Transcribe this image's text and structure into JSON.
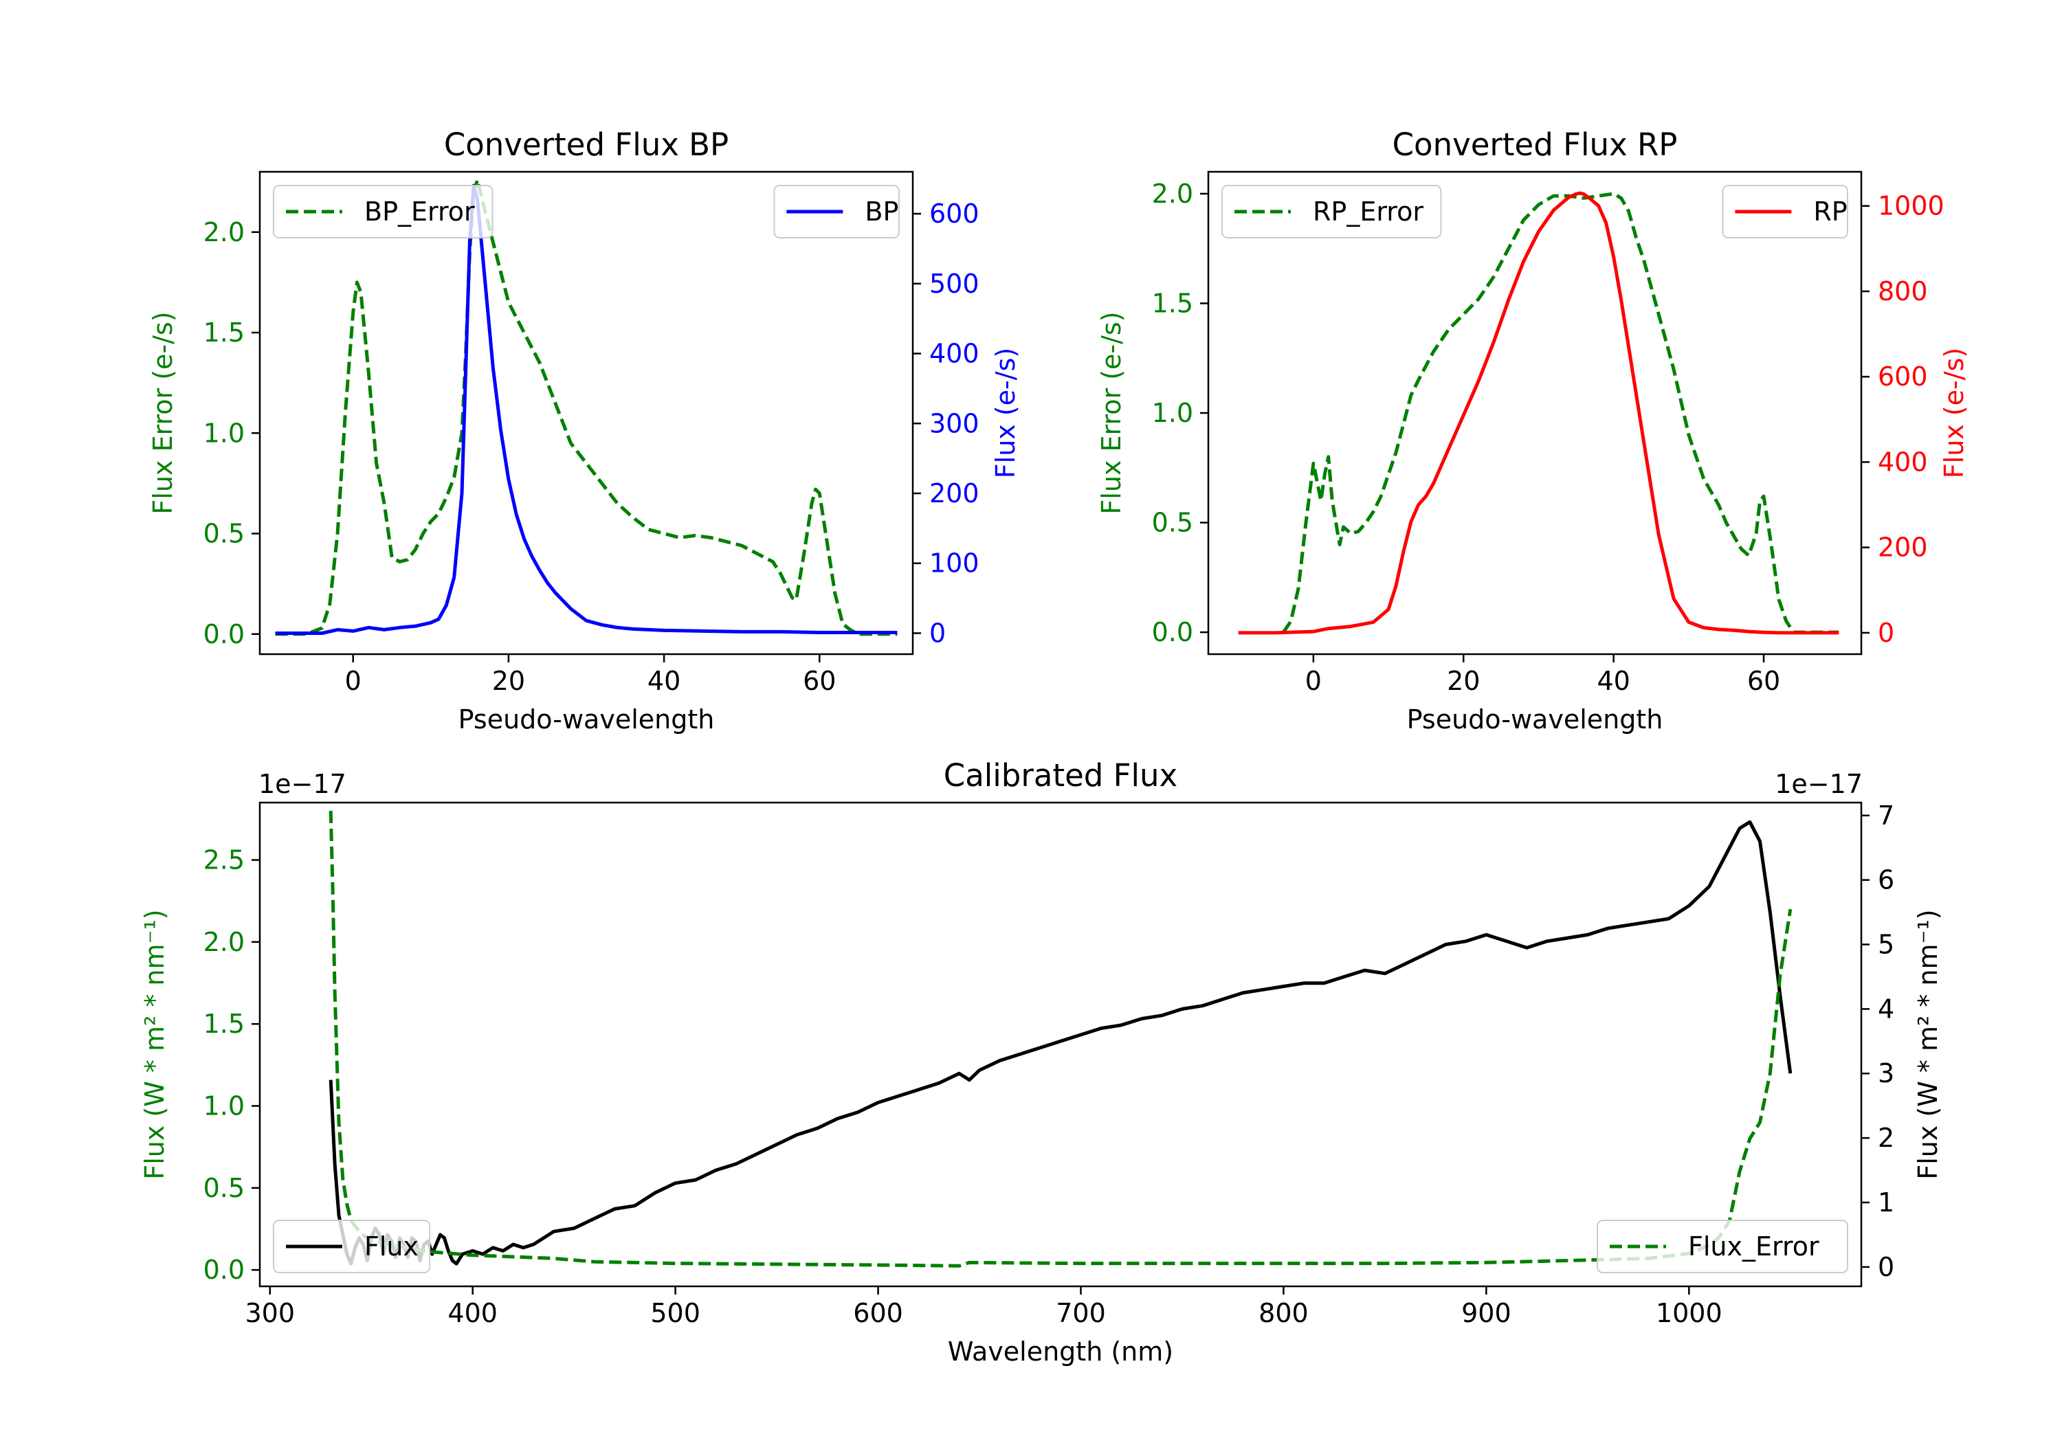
{
  "chart_data": [
    {
      "id": "bp",
      "type": "line",
      "title": "Converted Flux BP",
      "xlabel": "Pseudo-wavelength",
      "ylabel_left": "Flux Error (e-/s)",
      "ylabel_right": "Flux (e-/s)",
      "xlim": [
        -12,
        72
      ],
      "ylim_left": [
        -0.1,
        2.3
      ],
      "ylim_right": [
        -30,
        660
      ],
      "xticks": [
        0,
        20,
        40,
        60
      ],
      "yticks_left": [
        0.0,
        0.5,
        1.0,
        1.5,
        2.0
      ],
      "yticks_right": [
        0,
        100,
        200,
        300,
        400,
        500,
        600
      ],
      "colors": {
        "error": "#008000",
        "flux": "#0000ff"
      },
      "legend_error": {
        "label": "BP_Error",
        "position": "upper left"
      },
      "legend_flux": {
        "label": "BP",
        "position": "upper right"
      },
      "series": [
        {
          "name": "BP_Error",
          "axis": "left",
          "style": "dashed",
          "x": [
            -10,
            -6,
            -4,
            -3,
            -2,
            -1,
            0,
            0.5,
            1,
            2,
            3,
            4,
            5,
            6,
            7,
            8,
            9,
            10,
            11,
            12,
            13,
            14,
            14.5,
            15,
            15.5,
            16,
            17,
            18,
            19,
            20,
            22,
            24,
            26,
            28,
            30,
            32,
            34,
            36,
            38,
            40,
            42,
            44,
            46,
            48,
            50,
            52,
            54,
            55,
            56,
            56.5,
            57,
            58,
            59,
            59.5,
            60,
            61,
            62,
            63,
            64,
            65,
            66,
            68,
            70
          ],
          "y": [
            0,
            0,
            0.03,
            0.15,
            0.5,
            1.1,
            1.6,
            1.75,
            1.7,
            1.3,
            0.85,
            0.65,
            0.38,
            0.36,
            0.37,
            0.42,
            0.5,
            0.56,
            0.6,
            0.68,
            0.78,
            1.0,
            1.4,
            1.9,
            2.2,
            2.26,
            2.1,
            1.95,
            1.8,
            1.65,
            1.5,
            1.35,
            1.15,
            0.95,
            0.85,
            0.75,
            0.65,
            0.58,
            0.52,
            0.5,
            0.48,
            0.49,
            0.48,
            0.46,
            0.44,
            0.4,
            0.36,
            0.3,
            0.22,
            0.18,
            0.17,
            0.4,
            0.65,
            0.72,
            0.7,
            0.45,
            0.2,
            0.05,
            0.02,
            0,
            0,
            0,
            0
          ]
        },
        {
          "name": "BP",
          "axis": "right",
          "style": "solid",
          "x": [
            -10,
            -6,
            -4,
            -2,
            0,
            2,
            4,
            6,
            8,
            10,
            11,
            12,
            13,
            14,
            14.5,
            15,
            15.5,
            16,
            17,
            18,
            19,
            20,
            21,
            22,
            23,
            24,
            25,
            26,
            28,
            30,
            32,
            34,
            36,
            38,
            40,
            45,
            50,
            55,
            60,
            65,
            70
          ],
          "y": [
            0,
            0,
            0,
            5,
            3,
            8,
            5,
            8,
            10,
            15,
            20,
            40,
            80,
            200,
            380,
            560,
            640,
            620,
            500,
            380,
            290,
            220,
            170,
            135,
            110,
            90,
            72,
            58,
            35,
            18,
            12,
            8,
            6,
            5,
            4,
            3,
            2,
            2,
            1,
            1,
            1
          ]
        }
      ]
    },
    {
      "id": "rp",
      "type": "line",
      "title": "Converted Flux RP",
      "xlabel": "Pseudo-wavelength",
      "ylabel_left": "Flux Error (e-/s)",
      "ylabel_right": "Flux (e-/s)",
      "xlim": [
        -14,
        73
      ],
      "ylim_left": [
        -0.1,
        2.1
      ],
      "ylim_right": [
        -50,
        1080
      ],
      "xticks": [
        0,
        20,
        40,
        60
      ],
      "yticks_left": [
        0.0,
        0.5,
        1.0,
        1.5,
        2.0
      ],
      "yticks_right": [
        0,
        200,
        400,
        600,
        800,
        1000
      ],
      "colors": {
        "error": "#008000",
        "flux": "#ff0000"
      },
      "legend_error": {
        "label": "RP_Error",
        "position": "upper left"
      },
      "legend_flux": {
        "label": "RP",
        "position": "upper right"
      },
      "series": [
        {
          "name": "RP_Error",
          "axis": "left",
          "style": "dashed",
          "x": [
            -4,
            -3,
            -2,
            -1,
            0,
            1,
            1.5,
            2,
            2.5,
            3,
            3.5,
            4,
            5,
            6,
            7,
            8,
            9,
            10,
            11,
            12,
            13,
            14,
            16,
            18,
            20,
            22,
            24,
            26,
            28,
            30,
            32,
            34,
            36,
            38,
            40,
            41,
            42,
            43,
            44,
            46,
            48,
            50,
            52,
            54,
            55,
            56,
            57,
            58,
            59,
            59.5,
            60,
            61,
            62,
            63,
            64,
            65,
            66,
            68,
            70
          ],
          "y": [
            0,
            0.05,
            0.2,
            0.5,
            0.77,
            0.6,
            0.72,
            0.8,
            0.6,
            0.5,
            0.4,
            0.48,
            0.45,
            0.46,
            0.5,
            0.55,
            0.62,
            0.72,
            0.82,
            0.95,
            1.08,
            1.15,
            1.28,
            1.38,
            1.45,
            1.52,
            1.62,
            1.75,
            1.88,
            1.95,
            1.99,
            1.99,
            1.98,
            1.99,
            2.0,
            1.98,
            1.92,
            1.8,
            1.7,
            1.45,
            1.2,
            0.9,
            0.7,
            0.58,
            0.5,
            0.44,
            0.38,
            0.35,
            0.45,
            0.6,
            0.62,
            0.4,
            0.15,
            0.05,
            0,
            0,
            0,
            0,
            0
          ]
        },
        {
          "name": "RP",
          "axis": "right",
          "style": "solid",
          "x": [
            -10,
            -5,
            0,
            2,
            5,
            8,
            10,
            11,
            12,
            13,
            14,
            15,
            16,
            18,
            20,
            22,
            24,
            26,
            28,
            30,
            32,
            34,
            35,
            35.5,
            36,
            37,
            38,
            39,
            40,
            41,
            42,
            44,
            46,
            48,
            50,
            52,
            54,
            56,
            58,
            60,
            62,
            65,
            70
          ],
          "y": [
            0,
            0,
            3,
            10,
            15,
            25,
            55,
            110,
            190,
            260,
            300,
            320,
            350,
            430,
            510,
            590,
            680,
            780,
            870,
            940,
            990,
            1020,
            1028,
            1030,
            1028,
            1015,
            1000,
            960,
            880,
            780,
            670,
            450,
            230,
            80,
            25,
            12,
            8,
            6,
            3,
            1,
            0,
            0,
            0
          ]
        }
      ]
    },
    {
      "id": "cal",
      "type": "line",
      "title": "Calibrated Flux",
      "xlabel": "Wavelength (nm)",
      "ylabel_left": "Flux (W * m² * nm⁻¹)",
      "ylabel_right": "Flux (W * m² * nm⁻¹)",
      "offset_left": "1e−17",
      "offset_right": "1e−17",
      "xlim": [
        295,
        1085
      ],
      "ylim_left": [
        -0.1,
        2.85
      ],
      "ylim_right": [
        -0.3,
        7.2
      ],
      "xticks": [
        300,
        400,
        500,
        600,
        700,
        800,
        900,
        1000
      ],
      "yticks_left": [
        0.0,
        0.5,
        1.0,
        1.5,
        2.0,
        2.5
      ],
      "yticks_right": [
        0,
        1,
        2,
        3,
        4,
        5,
        6,
        7
      ],
      "colors": {
        "error": "#008000",
        "flux": "#000000"
      },
      "legend_flux": {
        "label": "Flux",
        "position": "lower left"
      },
      "legend_error": {
        "label": "Flux_Error",
        "position": "lower right"
      },
      "series": [
        {
          "name": "Flux",
          "axis": "right",
          "style": "solid",
          "x": [
            330,
            332,
            334,
            336,
            338,
            340,
            342,
            344,
            346,
            348,
            350,
            352,
            354,
            356,
            358,
            360,
            362,
            364,
            366,
            368,
            370,
            372,
            374,
            376,
            378,
            380,
            382,
            384,
            386,
            388,
            390,
            392,
            395,
            400,
            405,
            410,
            415,
            420,
            425,
            430,
            440,
            450,
            460,
            470,
            480,
            490,
            500,
            510,
            520,
            530,
            540,
            550,
            560,
            570,
            580,
            590,
            600,
            610,
            620,
            630,
            640,
            645,
            650,
            660,
            670,
            680,
            690,
            700,
            710,
            720,
            730,
            740,
            750,
            760,
            770,
            780,
            790,
            800,
            810,
            820,
            830,
            840,
            850,
            860,
            870,
            880,
            890,
            900,
            910,
            920,
            930,
            940,
            950,
            960,
            970,
            980,
            990,
            1000,
            1010,
            1020,
            1025,
            1030,
            1035,
            1040,
            1045,
            1050
          ],
          "y": [
            2.9,
            1.6,
            0.8,
            0.5,
            0.2,
            0.05,
            0.3,
            0.45,
            0.35,
            0.1,
            0.45,
            0.6,
            0.5,
            0.2,
            0.5,
            0.4,
            0.15,
            0.45,
            0.35,
            0.15,
            0.45,
            0.4,
            0.1,
            0.35,
            0.4,
            0.2,
            0.35,
            0.5,
            0.45,
            0.25,
            0.1,
            0.05,
            0.2,
            0.25,
            0.2,
            0.3,
            0.25,
            0.35,
            0.3,
            0.35,
            0.55,
            0.6,
            0.75,
            0.9,
            0.95,
            1.15,
            1.3,
            1.35,
            1.5,
            1.6,
            1.75,
            1.9,
            2.05,
            2.15,
            2.3,
            2.4,
            2.55,
            2.65,
            2.75,
            2.85,
            3.0,
            2.9,
            3.05,
            3.2,
            3.3,
            3.4,
            3.5,
            3.6,
            3.7,
            3.75,
            3.85,
            3.9,
            4.0,
            4.05,
            4.15,
            4.25,
            4.3,
            4.35,
            4.4,
            4.4,
            4.5,
            4.6,
            4.55,
            4.7,
            4.85,
            5.0,
            5.05,
            5.15,
            5.05,
            4.95,
            5.05,
            5.1,
            5.15,
            5.25,
            5.3,
            5.35,
            5.4,
            5.6,
            5.9,
            6.5,
            6.8,
            6.9,
            6.6,
            5.5,
            4.2,
            3.0
          ]
        },
        {
          "name": "Flux_Error",
          "axis": "left",
          "style": "dashed",
          "x": [
            330,
            331,
            332,
            334,
            336,
            338,
            340,
            345,
            350,
            360,
            370,
            380,
            390,
            400,
            420,
            440,
            460,
            500,
            550,
            600,
            640,
            645,
            700,
            750,
            800,
            850,
            900,
            950,
            980,
            1000,
            1010,
            1015,
            1020,
            1025,
            1030,
            1035,
            1040,
            1045,
            1050
          ],
          "y": [
            2.8,
            2.3,
            1.7,
            0.9,
            0.55,
            0.4,
            0.3,
            0.22,
            0.18,
            0.15,
            0.13,
            0.11,
            0.1,
            0.09,
            0.08,
            0.07,
            0.05,
            0.04,
            0.035,
            0.03,
            0.025,
            0.045,
            0.04,
            0.04,
            0.04,
            0.04,
            0.045,
            0.06,
            0.07,
            0.1,
            0.15,
            0.2,
            0.3,
            0.6,
            0.8,
            0.9,
            1.2,
            1.8,
            2.2
          ]
        }
      ]
    }
  ]
}
